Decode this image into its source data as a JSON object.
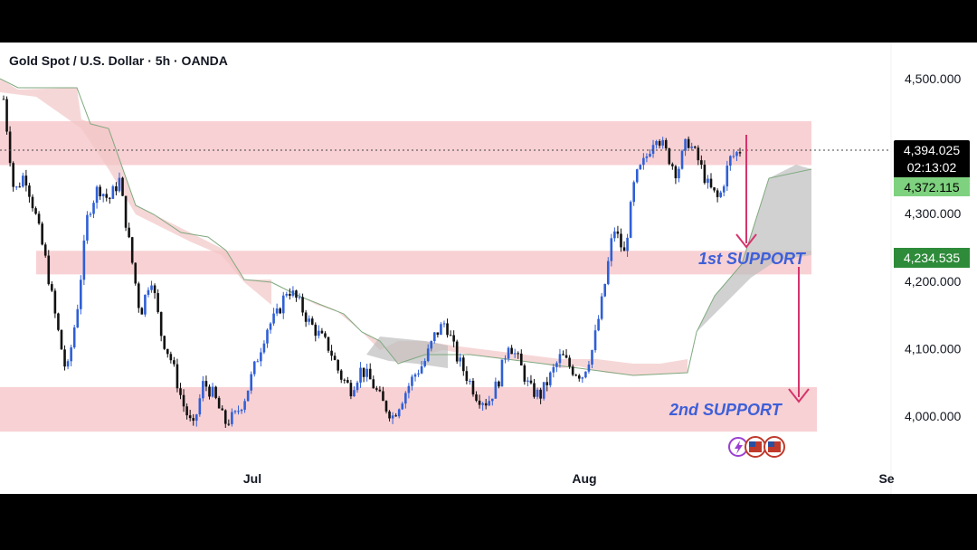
{
  "header": {
    "title": "Gold Spot / U.S. Dollar · 5h · OANDA"
  },
  "colors": {
    "up_candle": "#2f5fd6",
    "down_candle": "#111111",
    "zone_fill": "#f7c9cc",
    "cloud_bull": "#bdbdbd",
    "cloud_bear": "#f2c6c6",
    "arrow": "#d6336c",
    "support_text": "#3d5fd9",
    "price_label_bg": "#000000",
    "support_label_bg": "#2e8b3a",
    "secondary_label_bg": "#7ed17e"
  },
  "chart_data": {
    "type": "candlestick",
    "symbol": "Gold Spot / U.S. Dollar",
    "interval": "5h",
    "source": "OANDA",
    "ylim": [
      3930,
      4560
    ],
    "y_ticks": [
      "4,500.000",
      "4,300.000",
      "4,200.000",
      "4,100.000",
      "4,000.000"
    ],
    "y_tick_values": [
      4500,
      4300,
      4200,
      4100,
      4000
    ],
    "x_ticks": [
      "Jul",
      "Aug",
      "Se"
    ],
    "price_series": [
      4470,
      4330,
      4360,
      4300,
      4230,
      4140,
      4060,
      4160,
      4300,
      4340,
      4320,
      4350,
      4250,
      4150,
      4210,
      4120,
      4080,
      4020,
      3980,
      4050,
      4030,
      3990,
      4000,
      4030,
      4080,
      4130,
      4150,
      4190,
      4170,
      4140,
      4120,
      4100,
      4060,
      4040,
      4070,
      4050,
      4020,
      4000,
      4030,
      4060,
      4080,
      4120,
      4140,
      4090,
      4060,
      4030,
      4020,
      4050,
      4110,
      4080,
      4040,
      4030,
      4060,
      4090,
      4070,
      4060,
      4100,
      4180,
      4280,
      4240,
      4350,
      4380,
      4420,
      4390,
      4360,
      4410,
      4380,
      4340,
      4320,
      4380,
      4394
    ],
    "current_price": "4,394.025",
    "countdown": "02:13:02",
    "level_label_1": "4,372.115",
    "level_label_2": "4,234.535",
    "resistance_zone": [
      4372,
      4437
    ],
    "support_1_zone": [
      4210,
      4245
    ],
    "support_2_zone": [
      3977,
      4043
    ],
    "annotations": [
      "1st SUPPORT",
      "2nd SUPPORT"
    ],
    "grid": false
  }
}
